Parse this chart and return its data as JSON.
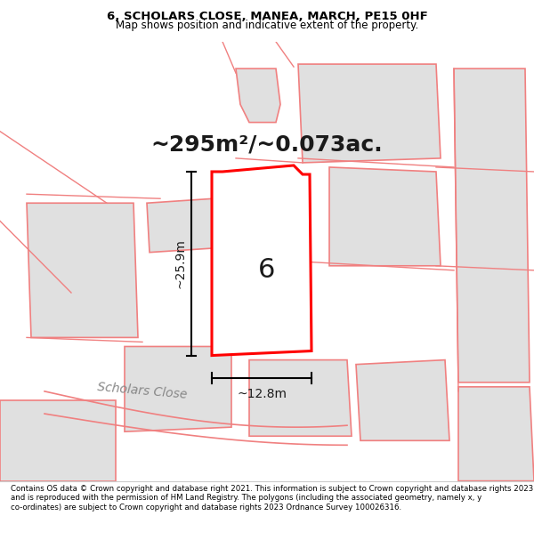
{
  "title": "6, SCHOLARS CLOSE, MANEA, MARCH, PE15 0HF",
  "subtitle": "Map shows position and indicative extent of the property.",
  "area_text": "~295m²/~0.073ac.",
  "width_label": "~12.8m",
  "height_label": "~25.9m",
  "number_label": "6",
  "road_label": "Scholars Close",
  "footer": "Contains OS data © Crown copyright and database right 2021. This information is subject to Crown copyright and database rights 2023 and is reproduced with the permission of HM Land Registry. The polygons (including the associated geometry, namely x, y co-ordinates) are subject to Crown copyright and database rights 2023 Ordnance Survey 100026316.",
  "bg_color": "#f5f0f0",
  "map_bg": "#ffffff",
  "plot_fill": "#ffffff",
  "plot_stroke": "#ff0000",
  "neighbor_fill": "#e0e0e0",
  "neighbor_stroke": "#f08080",
  "road_color": "#ffffff",
  "road_stroke": "#d0b0b0"
}
